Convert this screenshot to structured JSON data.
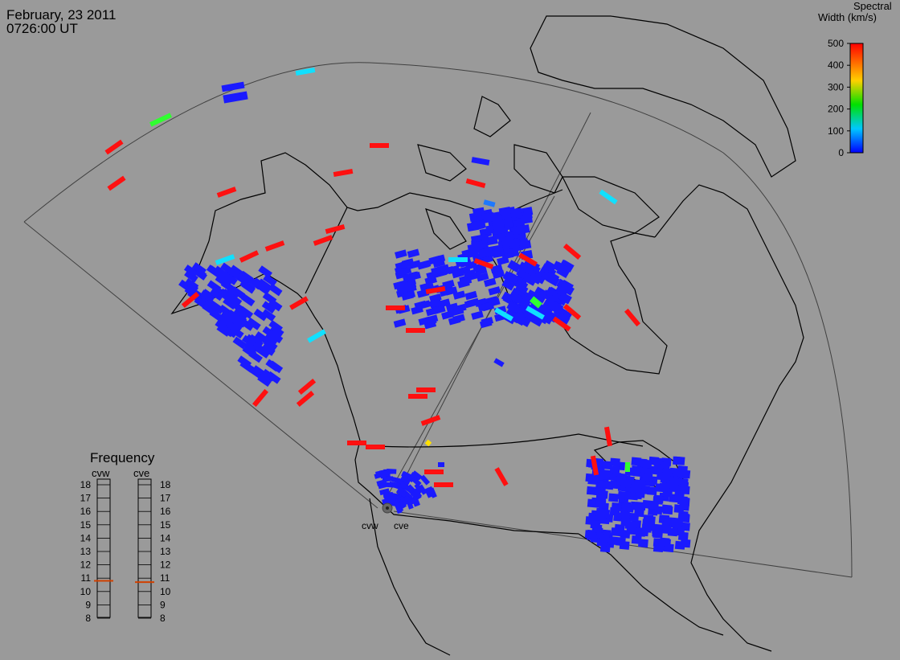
{
  "header": {
    "date": "February, 23 2011",
    "time": "0726:00 UT"
  },
  "colorbar": {
    "title_line1": "Spectral",
    "title_line2": "Width (km/s)",
    "ticks": [
      "500",
      "400",
      "300",
      "200",
      "100",
      "0"
    ],
    "stops": [
      "#0000ff",
      "#00c8ff",
      "#00e000",
      "#ffd000",
      "#ff0000"
    ]
  },
  "radars": {
    "west": "cvw",
    "east": "cve"
  },
  "frequency": {
    "title": "Frequency",
    "col_left": "cvw",
    "col_right": "cve",
    "ticks": [
      "18",
      "17",
      "16",
      "15",
      "14",
      "13",
      "12",
      "11",
      "10",
      "9",
      "8"
    ],
    "cvw_mhz": 10.8,
    "cve_mhz": 10.7,
    "marker_color": "#d04000"
  },
  "colors": {
    "background": "#9a9a9a",
    "coastline": "#000000",
    "fov": "#404040",
    "low": "#1a1aff",
    "mid_low": "#1e78ff",
    "cyan": "#10e0ff",
    "green": "#30ff30",
    "yellow": "#ffe000",
    "high": "#ff1010"
  }
}
